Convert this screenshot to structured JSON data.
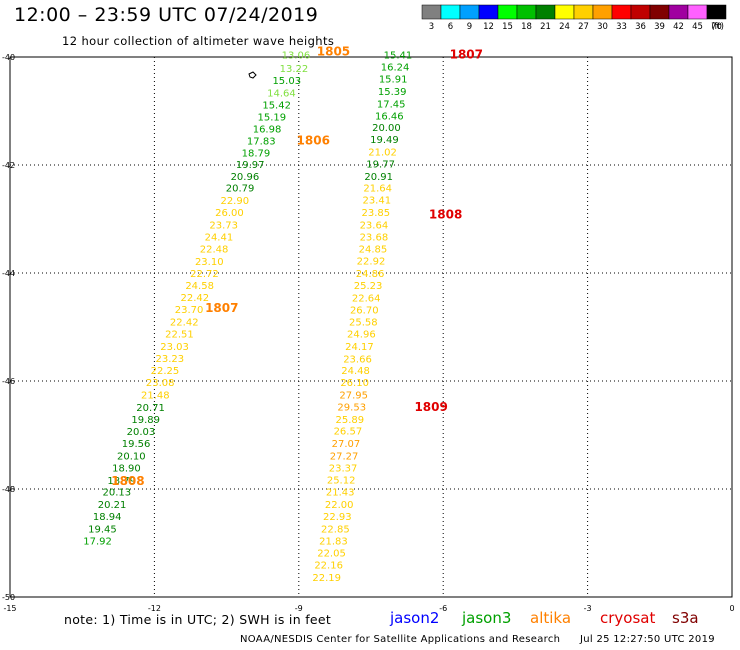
{
  "title": "12:00 – 23:59 UTC 07/24/2019",
  "subtitle": "12 hour collection of altimeter wave heights",
  "color_scale": {
    "unit": "(ft)",
    "bins": [
      {
        "label": "3",
        "color": "#808080"
      },
      {
        "label": "6",
        "color": "#00ffff"
      },
      {
        "label": "9",
        "color": "#00a0ff"
      },
      {
        "label": "12",
        "color": "#0000ff"
      },
      {
        "label": "15",
        "color": "#00ff00"
      },
      {
        "label": "18",
        "color": "#00c000"
      },
      {
        "label": "21",
        "color": "#008000"
      },
      {
        "label": "24",
        "color": "#ffff00"
      },
      {
        "label": "27",
        "color": "#ffd000"
      },
      {
        "label": "30",
        "color": "#ffa000"
      },
      {
        "label": "33",
        "color": "#ff0000"
      },
      {
        "label": "36",
        "color": "#c00000"
      },
      {
        "label": "39",
        "color": "#800000"
      },
      {
        "label": "42",
        "color": "#a000a0"
      },
      {
        "label": "45",
        "color": "#ff60ff"
      },
      {
        "label": "70",
        "color": "#000000"
      }
    ]
  },
  "map": {
    "lat_labels": [
      "-40",
      "-42",
      "-44",
      "-46",
      "-48",
      "-50"
    ],
    "lon_labels": [
      "-15",
      "-12",
      "-9",
      "-6",
      "-3",
      "0"
    ],
    "lat_range": [
      -50,
      -40
    ],
    "lon_range": [
      -15,
      0
    ]
  },
  "tracks": [
    {
      "name": "altika-left",
      "points": [
        {
          "lon": -9.06,
          "lat": -39.95,
          "v": "13.06",
          "c": "#80e040"
        },
        {
          "lon": -9.1,
          "lat": -40.2,
          "v": "13.22",
          "c": "#80e040"
        },
        {
          "lon": -9.25,
          "lat": -40.43,
          "v": "15.03",
          "c": "#00a000"
        },
        {
          "lon": -9.36,
          "lat": -40.66,
          "v": "14.64",
          "c": "#80e040"
        },
        {
          "lon": -9.46,
          "lat": -40.88,
          "v": "15.42",
          "c": "#00a000"
        },
        {
          "lon": -9.56,
          "lat": -41.1,
          "v": "15.19",
          "c": "#00a000"
        },
        {
          "lon": -9.66,
          "lat": -41.32,
          "v": "16.98",
          "c": "#00a000"
        },
        {
          "lon": -9.78,
          "lat": -41.55,
          "v": "17.83",
          "c": "#00a000"
        },
        {
          "lon": -9.89,
          "lat": -41.77,
          "v": "18.79",
          "c": "#00a000"
        },
        {
          "lon": -10.01,
          "lat": -41.98,
          "v": "19.97",
          "c": "#008000"
        },
        {
          "lon": -10.12,
          "lat": -42.2,
          "v": "20.96",
          "c": "#008000"
        },
        {
          "lon": -10.22,
          "lat": -42.42,
          "v": "20.79",
          "c": "#008000"
        },
        {
          "lon": -10.33,
          "lat": -42.65,
          "v": "22.90",
          "c": "#ffd000"
        },
        {
          "lon": -10.44,
          "lat": -42.87,
          "v": "26.00",
          "c": "#ffd000"
        },
        {
          "lon": -10.56,
          "lat": -43.1,
          "v": "23.73",
          "c": "#ffd000"
        },
        {
          "lon": -10.66,
          "lat": -43.32,
          "v": "24.41",
          "c": "#ffd000"
        },
        {
          "lon": -10.76,
          "lat": -43.55,
          "v": "22.48",
          "c": "#ffd000"
        },
        {
          "lon": -10.86,
          "lat": -43.78,
          "v": "23.10",
          "c": "#ffd000"
        },
        {
          "lon": -10.96,
          "lat": -44.0,
          "v": "22.72",
          "c": "#ffd000"
        },
        {
          "lon": -11.06,
          "lat": -44.22,
          "v": "24.58",
          "c": "#ffd000"
        },
        {
          "lon": -11.16,
          "lat": -44.44,
          "v": "22.42",
          "c": "#ffd000"
        },
        {
          "lon": -11.28,
          "lat": -44.67,
          "v": "23.70",
          "c": "#ffd000"
        },
        {
          "lon": -11.38,
          "lat": -44.9,
          "v": "22.42",
          "c": "#ffd000"
        },
        {
          "lon": -11.48,
          "lat": -45.12,
          "v": "22.51",
          "c": "#ffd000"
        },
        {
          "lon": -11.58,
          "lat": -45.35,
          "v": "23.03",
          "c": "#ffd000"
        },
        {
          "lon": -11.68,
          "lat": -45.57,
          "v": "23.23",
          "c": "#ffd000"
        },
        {
          "lon": -11.78,
          "lat": -45.8,
          "v": "22.25",
          "c": "#ffd000"
        },
        {
          "lon": -11.88,
          "lat": -46.02,
          "v": "23.08",
          "c": "#ffd000"
        },
        {
          "lon": -11.98,
          "lat": -46.25,
          "v": "21.48",
          "c": "#ffd000"
        },
        {
          "lon": -12.08,
          "lat": -46.48,
          "v": "20.71",
          "c": "#008000"
        },
        {
          "lon": -12.18,
          "lat": -46.7,
          "v": "19.89",
          "c": "#008000"
        },
        {
          "lon": -12.28,
          "lat": -46.93,
          "v": "20.03",
          "c": "#008000"
        },
        {
          "lon": -12.38,
          "lat": -47.15,
          "v": "19.56",
          "c": "#008000"
        },
        {
          "lon": -12.48,
          "lat": -47.38,
          "v": "20.10",
          "c": "#008000"
        },
        {
          "lon": -12.58,
          "lat": -47.6,
          "v": "18.90",
          "c": "#008000"
        },
        {
          "lon": -12.68,
          "lat": -47.83,
          "v": "18.79",
          "c": "#008000"
        },
        {
          "lon": -12.78,
          "lat": -48.05,
          "v": "20.13",
          "c": "#008000"
        },
        {
          "lon": -12.88,
          "lat": -48.28,
          "v": "20.21",
          "c": "#008000"
        },
        {
          "lon": -12.98,
          "lat": -48.5,
          "v": "18.94",
          "c": "#008000"
        },
        {
          "lon": -13.08,
          "lat": -48.73,
          "v": "19.45",
          "c": "#008000"
        },
        {
          "lon": -13.18,
          "lat": -48.95,
          "v": "17.92",
          "c": "#00a000"
        }
      ]
    },
    {
      "name": "altika-right",
      "points": [
        {
          "lon": -6.94,
          "lat": -39.95,
          "v": "15.41",
          "c": "#00a000"
        },
        {
          "lon": -7.0,
          "lat": -40.18,
          "v": "16.24",
          "c": "#00a000"
        },
        {
          "lon": -7.04,
          "lat": -40.4,
          "v": "15.91",
          "c": "#00a000"
        },
        {
          "lon": -7.06,
          "lat": -40.63,
          "v": "15.39",
          "c": "#00a000"
        },
        {
          "lon": -7.08,
          "lat": -40.86,
          "v": "17.45",
          "c": "#00a000"
        },
        {
          "lon": -7.12,
          "lat": -41.08,
          "v": "16.46",
          "c": "#00a000"
        },
        {
          "lon": -7.18,
          "lat": -41.3,
          "v": "20.00",
          "c": "#008000"
        },
        {
          "lon": -7.22,
          "lat": -41.52,
          "v": "19.49",
          "c": "#008000"
        },
        {
          "lon": -7.26,
          "lat": -41.75,
          "v": "21.02",
          "c": "#ffd000"
        },
        {
          "lon": -7.3,
          "lat": -41.97,
          "v": "19.77",
          "c": "#008000"
        },
        {
          "lon": -7.34,
          "lat": -42.2,
          "v": "20.91",
          "c": "#008000"
        },
        {
          "lon": -7.36,
          "lat": -42.42,
          "v": "21.64",
          "c": "#ffd000"
        },
        {
          "lon": -7.38,
          "lat": -42.64,
          "v": "23.41",
          "c": "#ffd000"
        },
        {
          "lon": -7.4,
          "lat": -42.87,
          "v": "23.85",
          "c": "#ffd000"
        },
        {
          "lon": -7.44,
          "lat": -43.1,
          "v": "23.64",
          "c": "#ffd000"
        },
        {
          "lon": -7.44,
          "lat": -43.32,
          "v": "23.68",
          "c": "#ffd000"
        },
        {
          "lon": -7.46,
          "lat": -43.55,
          "v": "24.85",
          "c": "#ffd000"
        },
        {
          "lon": -7.5,
          "lat": -43.77,
          "v": "22.92",
          "c": "#ffd000"
        },
        {
          "lon": -7.52,
          "lat": -44.0,
          "v": "24.86",
          "c": "#ffd000"
        },
        {
          "lon": -7.56,
          "lat": -44.22,
          "v": "25.23",
          "c": "#ffd000"
        },
        {
          "lon": -7.6,
          "lat": -44.45,
          "v": "22.64",
          "c": "#ffd000"
        },
        {
          "lon": -7.64,
          "lat": -44.68,
          "v": "26.70",
          "c": "#ffd000"
        },
        {
          "lon": -7.66,
          "lat": -44.9,
          "v": "25.58",
          "c": "#ffd000"
        },
        {
          "lon": -7.7,
          "lat": -45.12,
          "v": "24.96",
          "c": "#ffd000"
        },
        {
          "lon": -7.74,
          "lat": -45.35,
          "v": "24.17",
          "c": "#ffd000"
        },
        {
          "lon": -7.78,
          "lat": -45.58,
          "v": "23.66",
          "c": "#ffd000"
        },
        {
          "lon": -7.82,
          "lat": -45.8,
          "v": "24.48",
          "c": "#ffd000"
        },
        {
          "lon": -7.84,
          "lat": -46.02,
          "v": "26.10",
          "c": "#ffd000"
        },
        {
          "lon": -7.86,
          "lat": -46.25,
          "v": "27.95",
          "c": "#ffa000"
        },
        {
          "lon": -7.9,
          "lat": -46.47,
          "v": "29.53",
          "c": "#ffa000"
        },
        {
          "lon": -7.94,
          "lat": -46.7,
          "v": "25.89",
          "c": "#ffd000"
        },
        {
          "lon": -7.98,
          "lat": -46.92,
          "v": "26.57",
          "c": "#ffd000"
        },
        {
          "lon": -8.02,
          "lat": -47.15,
          "v": "27.07",
          "c": "#ffa000"
        },
        {
          "lon": -8.06,
          "lat": -47.38,
          "v": "27.27",
          "c": "#ffa000"
        },
        {
          "lon": -8.08,
          "lat": -47.6,
          "v": "23.37",
          "c": "#ffd000"
        },
        {
          "lon": -8.12,
          "lat": -47.82,
          "v": "25.12",
          "c": "#ffd000"
        },
        {
          "lon": -8.14,
          "lat": -48.05,
          "v": "21.43",
          "c": "#ffd000"
        },
        {
          "lon": -8.16,
          "lat": -48.28,
          "v": "22.00",
          "c": "#ffd000"
        },
        {
          "lon": -8.2,
          "lat": -48.5,
          "v": "22.93",
          "c": "#ffd000"
        },
        {
          "lon": -8.24,
          "lat": -48.73,
          "v": "22.85",
          "c": "#ffd000"
        },
        {
          "lon": -8.28,
          "lat": -48.95,
          "v": "21.83",
          "c": "#ffd000"
        },
        {
          "lon": -8.32,
          "lat": -49.18,
          "v": "22.05",
          "c": "#ffd000"
        },
        {
          "lon": -8.38,
          "lat": -49.4,
          "v": "22.16",
          "c": "#ffd000"
        },
        {
          "lon": -8.42,
          "lat": -49.63,
          "v": "22.19",
          "c": "#ffd000"
        }
      ]
    }
  ],
  "pass_times": [
    {
      "lon": -8.28,
      "lat": -39.9,
      "t": "1805",
      "c": "#ff8000"
    },
    {
      "lon": -5.52,
      "lat": -39.95,
      "t": "1807",
      "c": "#e00000"
    },
    {
      "lon": -8.7,
      "lat": -41.55,
      "t": "1806",
      "c": "#ff8000"
    },
    {
      "lon": -5.95,
      "lat": -42.92,
      "t": "1808",
      "c": "#e00000"
    },
    {
      "lon": -10.6,
      "lat": -44.65,
      "t": "1807",
      "c": "#ff8000"
    },
    {
      "lon": -6.25,
      "lat": -46.48,
      "t": "1809",
      "c": "#e00000"
    },
    {
      "lon": -12.55,
      "lat": -47.85,
      "t": "1808",
      "c": "#ff8000"
    }
  ],
  "note": "note:  1) Time is in UTC;  2) SWH is in feet",
  "legend": [
    {
      "name": "jason2",
      "color": "#0000ff"
    },
    {
      "name": "jason3",
      "color": "#00a000"
    },
    {
      "name": "altika",
      "color": "#ff8000"
    },
    {
      "name": "cryosat",
      "color": "#e00000"
    },
    {
      "name": "s3a",
      "color": "#800000"
    }
  ],
  "credit": "NOAA/NESDIS Center for Satellite Applications and Research",
  "generated": "Jul 25 12:27:50 UTC 2019"
}
